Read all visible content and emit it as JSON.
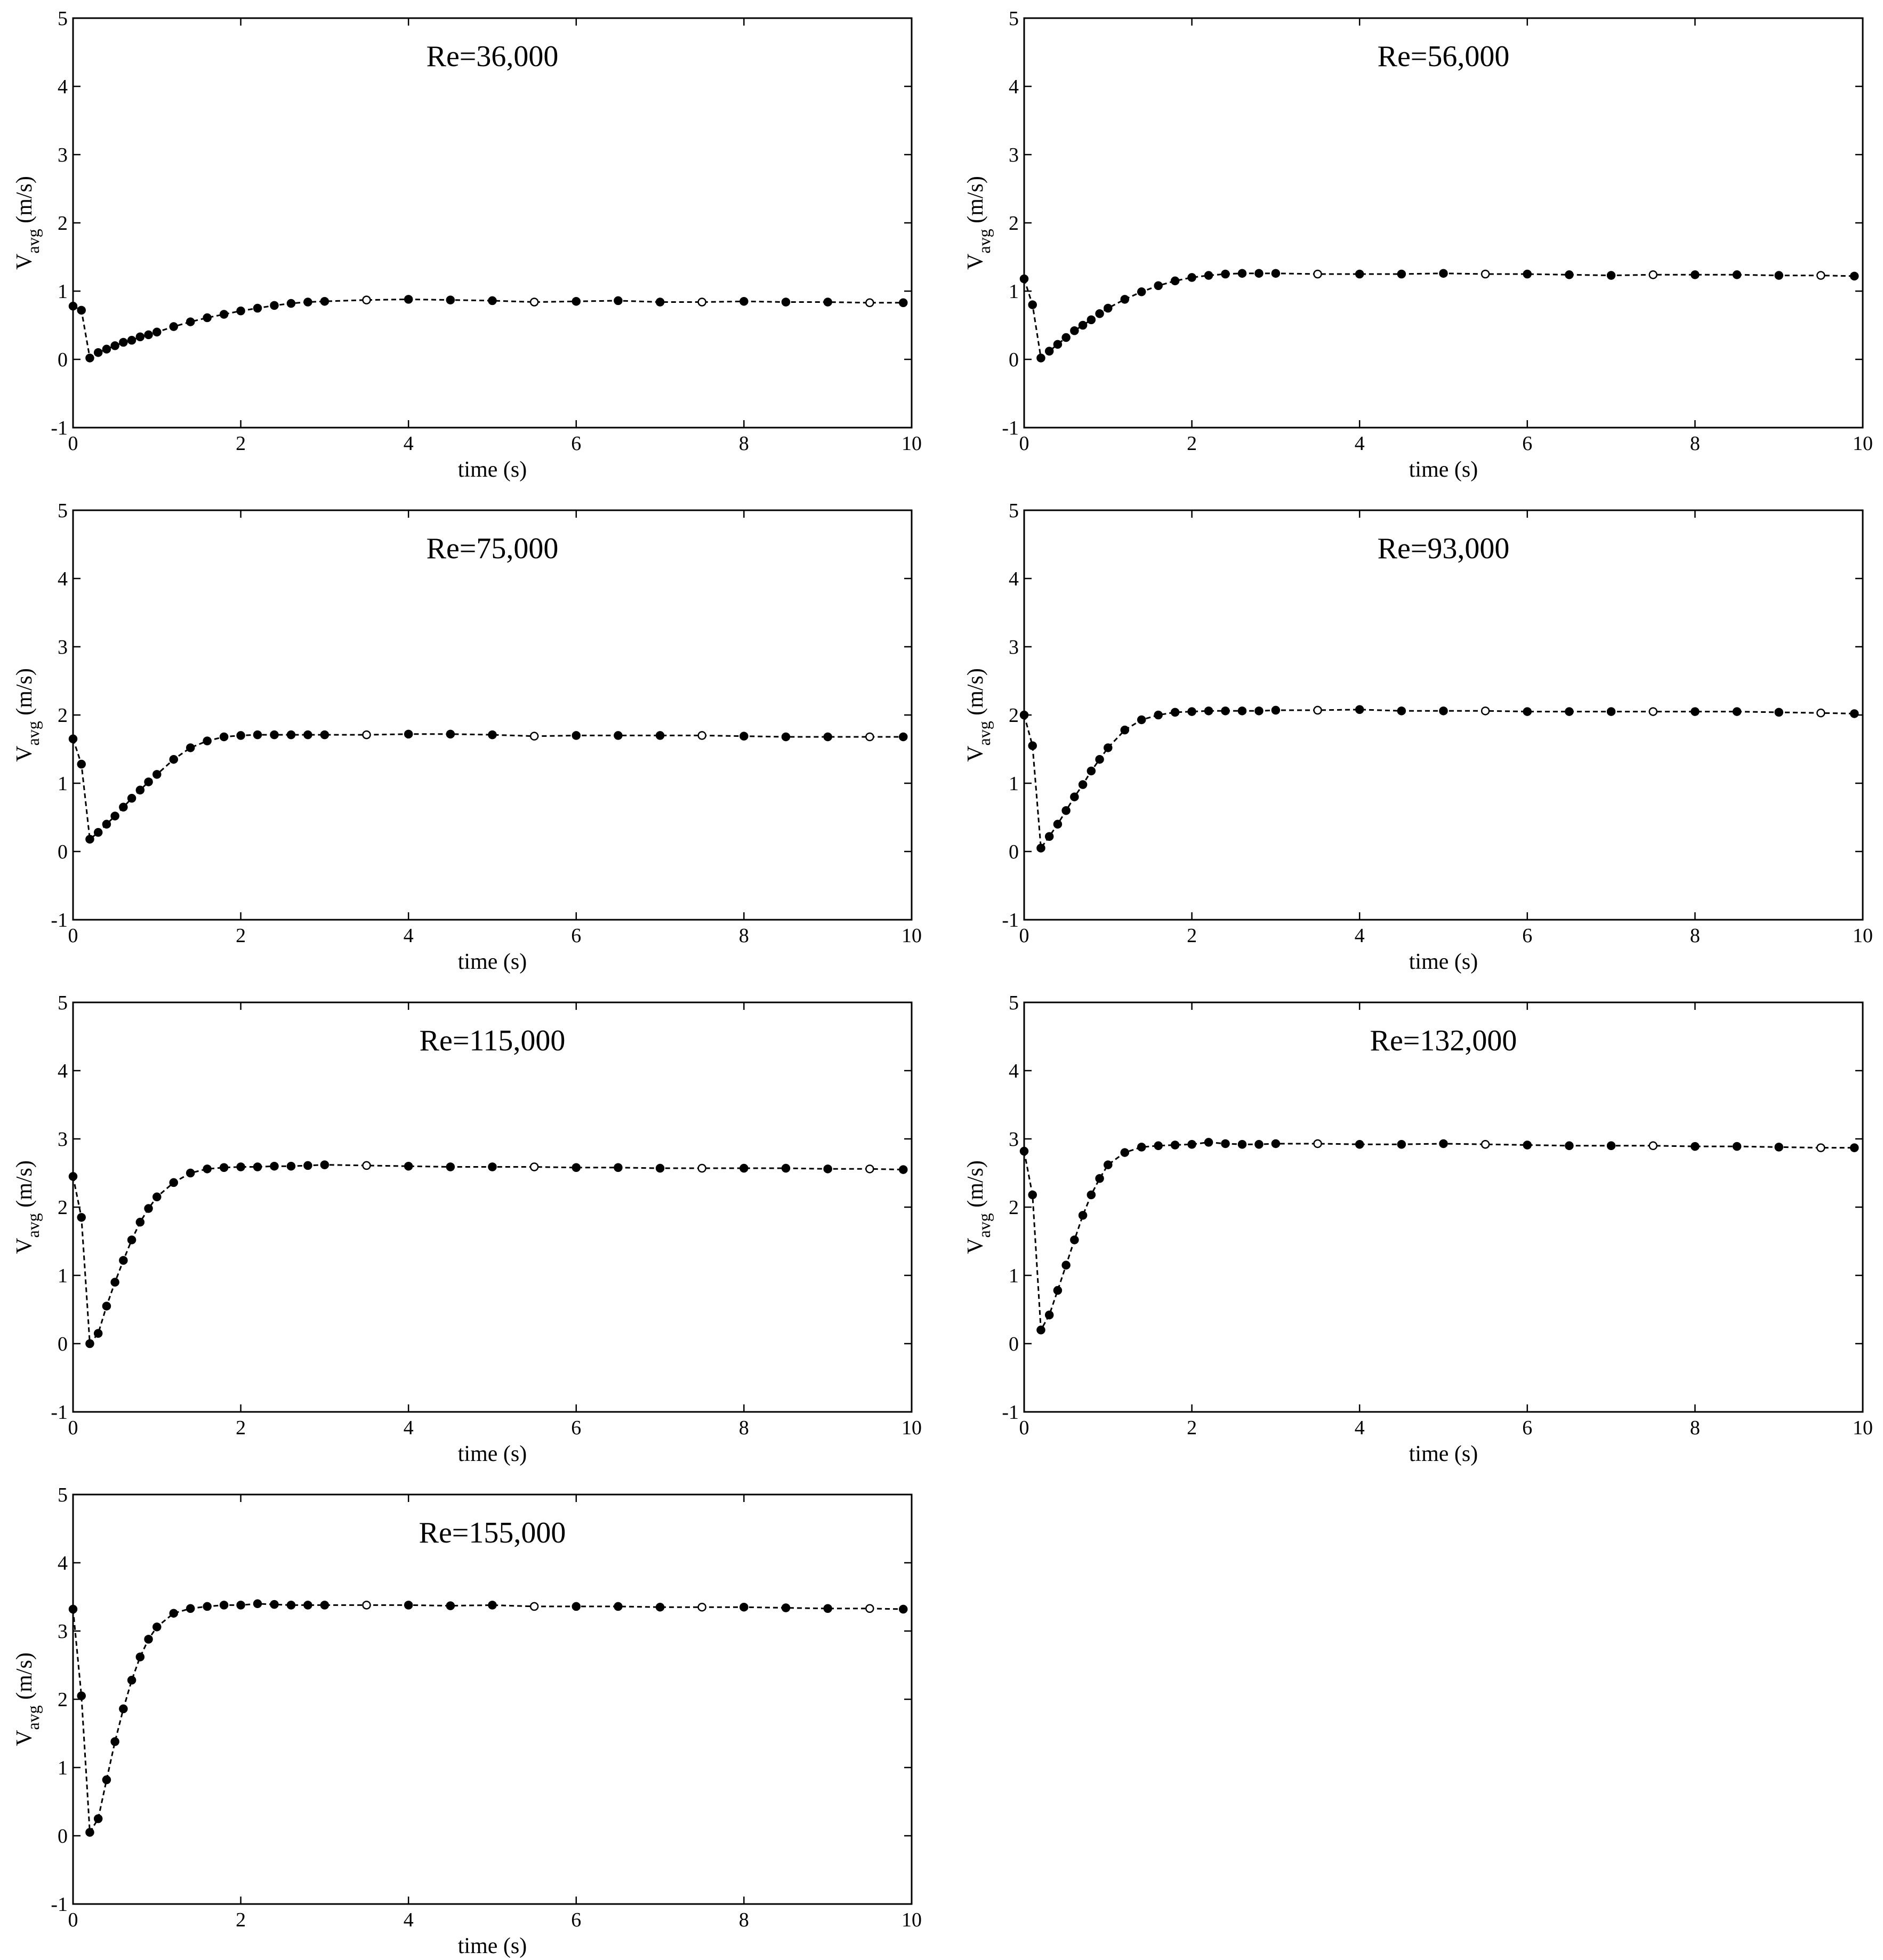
{
  "chart_data": [
    {
      "type": "line",
      "title": "Re=36,000",
      "xlabel": "time (s)",
      "ylabel": "V",
      "ylabel_sub": "avg",
      "ylabel_unit": "(m/s)",
      "xlim": [
        0,
        10
      ],
      "ylim": [
        -1,
        5
      ],
      "xticks": [
        "0",
        "2",
        "4",
        "6",
        "8",
        "10"
      ],
      "yticks": [
        "-1",
        "0",
        "1",
        "2",
        "3",
        "4",
        "5"
      ],
      "grid": false,
      "legend": "none",
      "series": [
        {
          "x": [
            0,
            0.1,
            0.2,
            0.3,
            0.4,
            0.5,
            0.6,
            0.7,
            0.8,
            0.9,
            1.0,
            1.2,
            1.4,
            1.6,
            1.8,
            2.0,
            2.2,
            2.4,
            2.6,
            2.8,
            3.0,
            3.5,
            4.0,
            4.5,
            5.0,
            5.5,
            6.0,
            6.5,
            7.0,
            7.5,
            8.0,
            8.5,
            9.0,
            9.5,
            9.9
          ],
          "y": [
            0.78,
            0.72,
            0.02,
            0.1,
            0.15,
            0.2,
            0.25,
            0.28,
            0.33,
            0.36,
            0.4,
            0.48,
            0.55,
            0.61,
            0.66,
            0.71,
            0.75,
            0.79,
            0.82,
            0.84,
            0.85,
            0.87,
            0.88,
            0.87,
            0.86,
            0.84,
            0.85,
            0.86,
            0.84,
            0.84,
            0.85,
            0.84,
            0.84,
            0.83,
            0.83
          ]
        }
      ]
    },
    {
      "type": "line",
      "title": "Re=56,000",
      "xlabel": "time (s)",
      "ylabel": "V",
      "ylabel_sub": "avg",
      "ylabel_unit": "(m/s)",
      "xlim": [
        0,
        10
      ],
      "ylim": [
        -1,
        5
      ],
      "xticks": [
        "0",
        "2",
        "4",
        "6",
        "8",
        "10"
      ],
      "yticks": [
        "-1",
        "0",
        "1",
        "2",
        "3",
        "4",
        "5"
      ],
      "grid": false,
      "legend": "none",
      "series": [
        {
          "x": [
            0,
            0.1,
            0.2,
            0.3,
            0.4,
            0.5,
            0.6,
            0.7,
            0.8,
            0.9,
            1.0,
            1.2,
            1.4,
            1.6,
            1.8,
            2.0,
            2.2,
            2.4,
            2.6,
            2.8,
            3.0,
            3.5,
            4.0,
            4.5,
            5.0,
            5.5,
            6.0,
            6.5,
            7.0,
            7.5,
            8.0,
            8.5,
            9.0,
            9.5,
            9.9
          ],
          "y": [
            1.18,
            0.8,
            0.02,
            0.12,
            0.22,
            0.32,
            0.42,
            0.5,
            0.58,
            0.67,
            0.75,
            0.88,
            0.99,
            1.08,
            1.15,
            1.2,
            1.23,
            1.25,
            1.26,
            1.26,
            1.26,
            1.25,
            1.25,
            1.25,
            1.26,
            1.25,
            1.25,
            1.24,
            1.23,
            1.24,
            1.24,
            1.24,
            1.23,
            1.23,
            1.22
          ]
        }
      ]
    },
    {
      "type": "line",
      "title": "Re=75,000",
      "xlabel": "time (s)",
      "ylabel": "V",
      "ylabel_sub": "avg",
      "ylabel_unit": "(m/s)",
      "xlim": [
        0,
        10
      ],
      "ylim": [
        -1,
        5
      ],
      "xticks": [
        "0",
        "2",
        "4",
        "6",
        "8",
        "10"
      ],
      "yticks": [
        "-1",
        "0",
        "1",
        "2",
        "3",
        "4",
        "5"
      ],
      "grid": false,
      "legend": "none",
      "series": [
        {
          "x": [
            0,
            0.1,
            0.2,
            0.3,
            0.4,
            0.5,
            0.6,
            0.7,
            0.8,
            0.9,
            1.0,
            1.2,
            1.4,
            1.6,
            1.8,
            2.0,
            2.2,
            2.4,
            2.6,
            2.8,
            3.0,
            3.5,
            4.0,
            4.5,
            5.0,
            5.5,
            6.0,
            6.5,
            7.0,
            7.5,
            8.0,
            8.5,
            9.0,
            9.5,
            9.9
          ],
          "y": [
            1.65,
            1.28,
            0.18,
            0.28,
            0.4,
            0.52,
            0.65,
            0.78,
            0.9,
            1.02,
            1.13,
            1.35,
            1.52,
            1.62,
            1.68,
            1.7,
            1.71,
            1.71,
            1.71,
            1.71,
            1.71,
            1.71,
            1.72,
            1.72,
            1.71,
            1.69,
            1.7,
            1.7,
            1.7,
            1.7,
            1.69,
            1.68,
            1.68,
            1.68,
            1.68
          ]
        }
      ]
    },
    {
      "type": "line",
      "title": "Re=93,000",
      "xlabel": "time (s)",
      "ylabel": "V",
      "ylabel_sub": "avg",
      "ylabel_unit": "(m/s)",
      "xlim": [
        0,
        10
      ],
      "ylim": [
        -1,
        5
      ],
      "xticks": [
        "0",
        "2",
        "4",
        "6",
        "8",
        "10"
      ],
      "yticks": [
        "-1",
        "0",
        "1",
        "2",
        "3",
        "4",
        "5"
      ],
      "grid": false,
      "legend": "none",
      "series": [
        {
          "x": [
            0,
            0.1,
            0.2,
            0.3,
            0.4,
            0.5,
            0.6,
            0.7,
            0.8,
            0.9,
            1.0,
            1.2,
            1.4,
            1.6,
            1.8,
            2.0,
            2.2,
            2.4,
            2.6,
            2.8,
            3.0,
            3.5,
            4.0,
            4.5,
            5.0,
            5.5,
            6.0,
            6.5,
            7.0,
            7.5,
            8.0,
            8.5,
            9.0,
            9.5,
            9.9
          ],
          "y": [
            2.0,
            1.55,
            0.05,
            0.22,
            0.4,
            0.6,
            0.8,
            0.98,
            1.18,
            1.35,
            1.52,
            1.78,
            1.93,
            2.0,
            2.04,
            2.05,
            2.06,
            2.06,
            2.06,
            2.06,
            2.07,
            2.07,
            2.08,
            2.06,
            2.06,
            2.06,
            2.05,
            2.05,
            2.05,
            2.05,
            2.05,
            2.05,
            2.04,
            2.03,
            2.02
          ]
        }
      ]
    },
    {
      "type": "line",
      "title": "Re=115,000",
      "xlabel": "time (s)",
      "ylabel": "V",
      "ylabel_sub": "avg",
      "ylabel_unit": "(m/s)",
      "xlim": [
        0,
        10
      ],
      "ylim": [
        -1,
        5
      ],
      "xticks": [
        "0",
        "2",
        "4",
        "6",
        "8",
        "10"
      ],
      "yticks": [
        "-1",
        "0",
        "1",
        "2",
        "3",
        "4",
        "5"
      ],
      "grid": false,
      "legend": "none",
      "series": [
        {
          "x": [
            0,
            0.1,
            0.2,
            0.3,
            0.4,
            0.5,
            0.6,
            0.7,
            0.8,
            0.9,
            1.0,
            1.2,
            1.4,
            1.6,
            1.8,
            2.0,
            2.2,
            2.4,
            2.6,
            2.8,
            3.0,
            3.5,
            4.0,
            4.5,
            5.0,
            5.5,
            6.0,
            6.5,
            7.0,
            7.5,
            8.0,
            8.5,
            9.0,
            9.5,
            9.9
          ],
          "y": [
            2.45,
            1.85,
            0.0,
            0.15,
            0.55,
            0.9,
            1.22,
            1.52,
            1.78,
            1.98,
            2.15,
            2.36,
            2.5,
            2.56,
            2.58,
            2.59,
            2.59,
            2.6,
            2.6,
            2.61,
            2.62,
            2.61,
            2.6,
            2.59,
            2.59,
            2.59,
            2.58,
            2.58,
            2.57,
            2.57,
            2.57,
            2.57,
            2.56,
            2.56,
            2.55
          ]
        }
      ]
    },
    {
      "type": "line",
      "title": "Re=132,000",
      "xlabel": "time (s)",
      "ylabel": "V",
      "ylabel_sub": "avg",
      "ylabel_unit": "(m/s)",
      "xlim": [
        0,
        10
      ],
      "ylim": [
        -1,
        5
      ],
      "xticks": [
        "0",
        "2",
        "4",
        "6",
        "8",
        "10"
      ],
      "yticks": [
        "-1",
        "0",
        "1",
        "2",
        "3",
        "4",
        "5"
      ],
      "grid": false,
      "legend": "none",
      "series": [
        {
          "x": [
            0,
            0.1,
            0.2,
            0.3,
            0.4,
            0.5,
            0.6,
            0.7,
            0.8,
            0.9,
            1.0,
            1.2,
            1.4,
            1.6,
            1.8,
            2.0,
            2.2,
            2.4,
            2.6,
            2.8,
            3.0,
            3.5,
            4.0,
            4.5,
            5.0,
            5.5,
            6.0,
            6.5,
            7.0,
            7.5,
            8.0,
            8.5,
            9.0,
            9.5,
            9.9
          ],
          "y": [
            2.82,
            2.18,
            0.2,
            0.42,
            0.78,
            1.15,
            1.52,
            1.88,
            2.18,
            2.42,
            2.62,
            2.8,
            2.88,
            2.9,
            2.91,
            2.92,
            2.95,
            2.93,
            2.92,
            2.92,
            2.93,
            2.93,
            2.92,
            2.92,
            2.93,
            2.92,
            2.91,
            2.9,
            2.9,
            2.9,
            2.89,
            2.89,
            2.88,
            2.87,
            2.87
          ]
        }
      ]
    },
    {
      "type": "line",
      "title": "Re=155,000",
      "xlabel": "time (s)",
      "ylabel": "V",
      "ylabel_sub": "avg",
      "ylabel_unit": "(m/s)",
      "xlim": [
        0,
        10
      ],
      "ylim": [
        -1,
        5
      ],
      "xticks": [
        "0",
        "2",
        "4",
        "6",
        "8",
        "10"
      ],
      "yticks": [
        "-1",
        "0",
        "1",
        "2",
        "3",
        "4",
        "5"
      ],
      "grid": false,
      "legend": "none",
      "series": [
        {
          "x": [
            0,
            0.1,
            0.2,
            0.3,
            0.4,
            0.5,
            0.6,
            0.7,
            0.8,
            0.9,
            1.0,
            1.2,
            1.4,
            1.6,
            1.8,
            2.0,
            2.2,
            2.4,
            2.6,
            2.8,
            3.0,
            3.5,
            4.0,
            4.5,
            5.0,
            5.5,
            6.0,
            6.5,
            7.0,
            7.5,
            8.0,
            8.5,
            9.0,
            9.5,
            9.9
          ],
          "y": [
            3.32,
            2.05,
            0.05,
            0.25,
            0.82,
            1.38,
            1.86,
            2.28,
            2.62,
            2.88,
            3.06,
            3.26,
            3.33,
            3.36,
            3.38,
            3.38,
            3.4,
            3.39,
            3.38,
            3.38,
            3.38,
            3.38,
            3.38,
            3.37,
            3.38,
            3.36,
            3.36,
            3.36,
            3.35,
            3.35,
            3.35,
            3.34,
            3.33,
            3.33,
            3.32
          ]
        }
      ]
    }
  ]
}
